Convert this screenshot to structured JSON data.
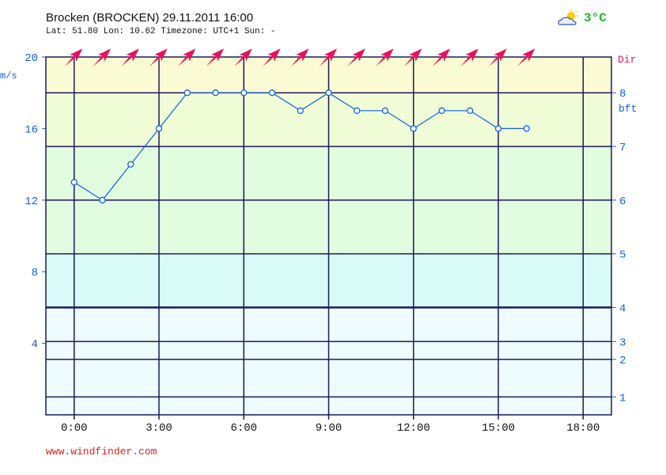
{
  "header": {
    "title": "Brocken (BROCKEN) 29.11.2011 16:00",
    "subtitle": "Lat: 51.80 Lon: 10.62 Timezone: UTC+1 Sun: -",
    "weather_icon": "partly-cloudy-icon",
    "temperature": "3°C"
  },
  "footer": {
    "text": "www.windfinder.com"
  },
  "colors": {
    "speed_axis": "#1060e0",
    "direction": "#e8115b",
    "grid": "#1a1a5a",
    "temperature": "#22bb22"
  },
  "chart_data": {
    "type": "line",
    "left_axis_label": "m/s",
    "right_axis_label": "bft",
    "direction_label": "Dir",
    "ylim": [
      0,
      20
    ],
    "yticks": [
      4,
      8,
      12,
      16,
      20
    ],
    "x_ticks": [
      "0:00",
      "3:00",
      "6:00",
      "9:00",
      "12:00",
      "15:00",
      "18:00"
    ],
    "x_range_hours": [
      -1,
      19
    ],
    "beaufort_ticks": [
      {
        "label": "1",
        "ms": 1.0
      },
      {
        "label": "2",
        "ms": 3.1
      },
      {
        "label": "3",
        "ms": 4.1
      },
      {
        "label": "4",
        "ms": 6.0
      },
      {
        "label": "5",
        "ms": 9.0
      },
      {
        "label": "6",
        "ms": 12.0
      },
      {
        "label": "7",
        "ms": 15.0
      },
      {
        "label": "8",
        "ms": 18.0
      }
    ],
    "bands": [
      {
        "from": 0,
        "to": 6,
        "color": "#eefcff"
      },
      {
        "from": 6,
        "to": 9,
        "color": "#d9fbf7"
      },
      {
        "from": 9,
        "to": 15,
        "color": "#e2fce0"
      },
      {
        "from": 15,
        "to": 18,
        "color": "#effcd6"
      },
      {
        "from": 18,
        "to": 20,
        "color": "#fbfbd3"
      }
    ],
    "series": [
      {
        "x": [
          0,
          1,
          2,
          3,
          4,
          5,
          6,
          7,
          8,
          9,
          10,
          11,
          12,
          13,
          14,
          15,
          16
        ],
        "values": [
          13,
          12,
          14,
          16,
          18,
          18,
          18,
          18,
          17,
          18,
          17,
          17,
          16,
          17,
          17,
          16,
          16
        ]
      }
    ],
    "wind_direction_hours": [
      0,
      1,
      2,
      3,
      4,
      5,
      6,
      7,
      8,
      9,
      10,
      11,
      12,
      13,
      14,
      15,
      16
    ],
    "wind_direction_deg": [
      225,
      225,
      225,
      225,
      225,
      225,
      225,
      225,
      225,
      225,
      225,
      225,
      225,
      225,
      225,
      225,
      225
    ]
  }
}
